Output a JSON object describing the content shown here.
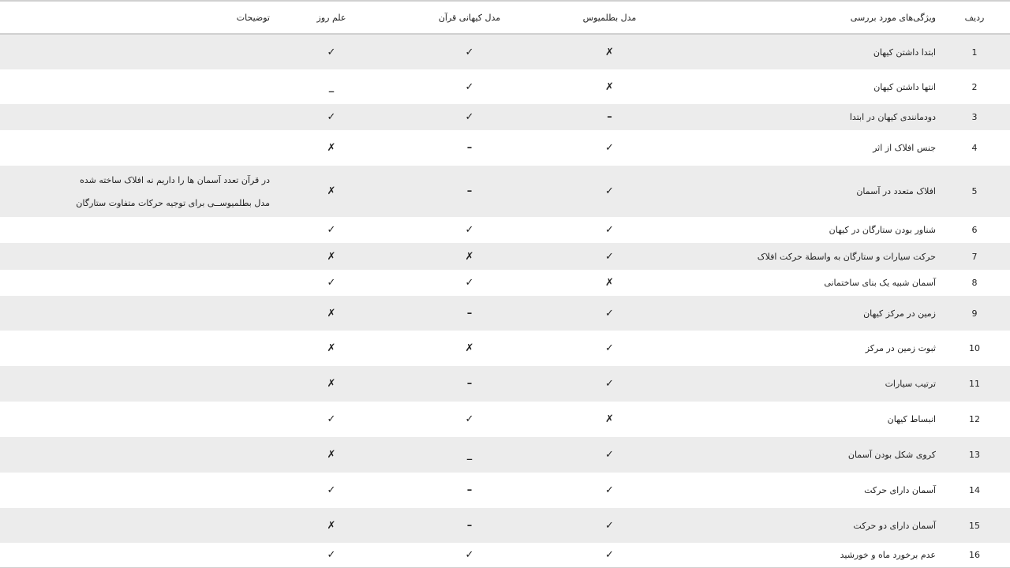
{
  "headers": {
    "row": "ردیف",
    "feature": "ویژگی‌های مورد بررسی",
    "ptolemy": "مدل بطلمیوس",
    "quran": "مدل کیهانی قرآن",
    "science": "علم روز",
    "notes": "توضیحات"
  },
  "symbols": {
    "check": "✓ check-icon",
    "cross": "✗ cross-icon",
    "dash": "– not-applicable"
  },
  "rows": [
    {
      "n": "1",
      "f": "ابتدا داشتن کیهان",
      "p": "✗",
      "q": "✓",
      "s": "✓"
    },
    {
      "n": "2",
      "f": "انتها داشتن کیهان",
      "p": "✗",
      "q": "✓",
      "s": "_"
    },
    {
      "n": "3",
      "f": "دودمانندی کیهان در ابتدا",
      "p": "–",
      "q": "✓",
      "s": "✓"
    },
    {
      "n": "4",
      "f": "جنس افلاک از اثر",
      "p": "✓",
      "q": "–",
      "s": "✗"
    },
    {
      "n": "5",
      "f": "افلاک متعدد در آسمان",
      "p": "✓",
      "q": "–",
      "s": "✗",
      "note1": "در قرآن تعدد آسمان ها را داریم نه افلاک ساخته شده",
      "note2": "مدل بطلمیوســی برای  توجیه حرکات متفاوت ستارگان"
    },
    {
      "n": "6",
      "f": "شناور بودن ستارگان در کیهان",
      "p": "✓",
      "q": "✓",
      "s": "✓"
    },
    {
      "n": "7",
      "f": "حرکت سیارات و ستارگان به واسطة حرکت افلاک",
      "p": "✓",
      "q": "✗",
      "s": "✗"
    },
    {
      "n": "8",
      "f": "آسمان شبیه یک بنای ساختمانی",
      "p": "✗",
      "q": "✓",
      "s": "✓"
    },
    {
      "n": "9",
      "f": "زمین در مرکز کیهان",
      "p": "✓",
      "q": "–",
      "s": "✗"
    },
    {
      "n": "10",
      "f": "ثبوت زمین در مرکز",
      "p": "✓",
      "q": "✗",
      "s": "✗"
    },
    {
      "n": "11",
      "f": "ترتیب سیارات",
      "p": "✓",
      "q": "–",
      "s": "✗"
    },
    {
      "n": "12",
      "f": "انبساط کیهان",
      "p": "✗",
      "q": "✓",
      "s": "✓"
    },
    {
      "n": "13",
      "f": "کروی شکل بودن آسمان",
      "p": "✓",
      "q": "_",
      "s": "✗"
    },
    {
      "n": "14",
      "f": "آسمان دارای حرکت",
      "p": "✓",
      "q": "–",
      "s": "✓"
    },
    {
      "n": "15",
      "f": "آسمان دارای دو حرکت",
      "p": "✓",
      "q": "–",
      "s": "✗"
    },
    {
      "n": "16",
      "f": "عدم برخورد ماه و خورشید",
      "p": "✓",
      "q": "✓",
      "s": "✓"
    }
  ]
}
